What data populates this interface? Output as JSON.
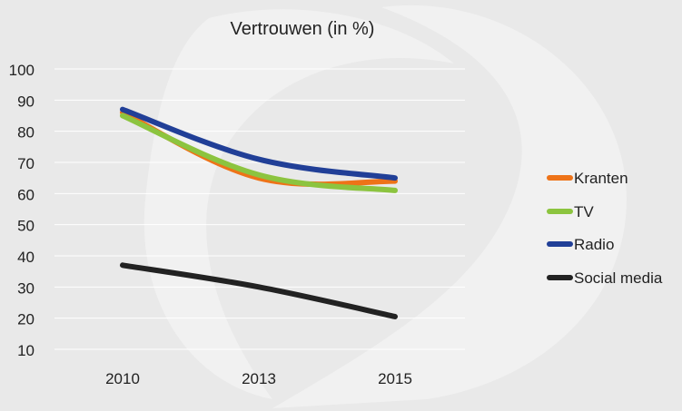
{
  "chart_data": {
    "type": "line",
    "title": "Vertrouwen (in %)",
    "xlabel": "",
    "ylabel": "",
    "x": [
      2010,
      2013,
      2015
    ],
    "x_tick_labels": [
      "2010",
      "2013",
      "2015"
    ],
    "y_ticks": [
      10,
      20,
      30,
      40,
      50,
      60,
      70,
      80,
      90,
      100
    ],
    "ylim": [
      10,
      100
    ],
    "grid": true,
    "legend_position": "right",
    "series": [
      {
        "name": "Kranten",
        "color": "#ee7318",
        "values": [
          86,
          65,
          64
        ]
      },
      {
        "name": "TV",
        "color": "#8cc43f",
        "values": [
          85,
          66,
          61
        ]
      },
      {
        "name": "Radio",
        "color": "#213f97",
        "values": [
          87,
          71,
          65
        ]
      },
      {
        "name": "Social media",
        "color": "#222222",
        "values": [
          37,
          30,
          20.5
        ]
      }
    ]
  }
}
